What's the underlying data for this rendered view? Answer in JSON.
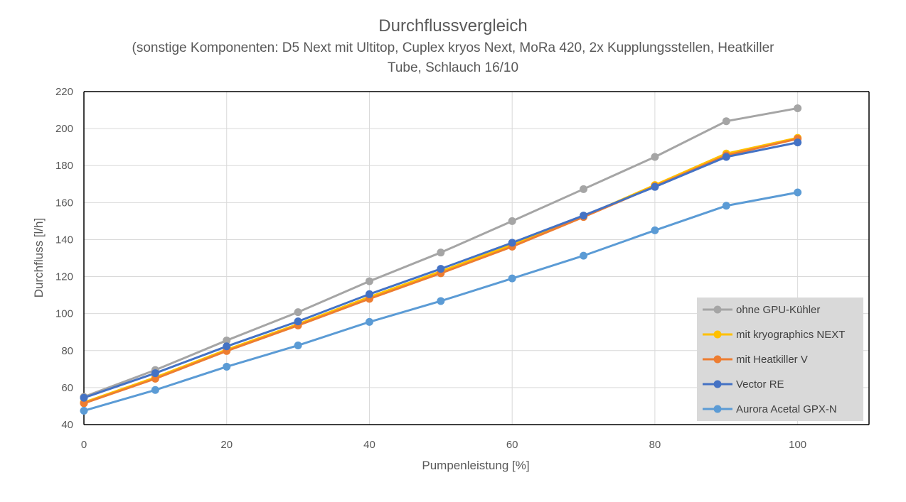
{
  "chart_data": {
    "type": "line",
    "title": "Durchflussvergleich",
    "subtitle_lines": [
      "(sonstige Komponenten:  D5 Next mit Ultitop, Cuplex kryos Next, MoRa 420,  2x Kupplungsstellen, Heatkiller",
      "Tube, Schlauch 16/10"
    ],
    "xlabel": "Pumpenleistung [%]",
    "ylabel": "Durchfluss [l/h]",
    "xlim": [
      0,
      110
    ],
    "ylim": [
      40,
      220
    ],
    "xticks": [
      0,
      20,
      40,
      60,
      80,
      100
    ],
    "yticks": [
      40,
      60,
      80,
      100,
      120,
      140,
      160,
      180,
      200,
      220
    ],
    "grid": true,
    "legend_position": "right",
    "x": [
      0,
      10,
      20,
      30,
      40,
      50,
      60,
      70,
      80,
      90,
      100
    ],
    "series": [
      {
        "name": "ohne GPU-Kühler",
        "color": "#A5A5A5",
        "values": [
          55,
          69.5,
          85.5,
          100.8,
          117.5,
          133,
          150,
          167.3,
          184.7,
          204,
          211
        ]
      },
      {
        "name": "mit kryographics NEXT",
        "color": "#FFC000",
        "values": [
          52,
          65.5,
          80.5,
          94.3,
          109,
          122.8,
          137.2,
          152.5,
          169.5,
          186.5,
          195
        ]
      },
      {
        "name": "mit Heatkiller V",
        "color": "#ED7D31",
        "values": [
          51.5,
          64.8,
          79.8,
          93.6,
          108,
          121.8,
          136.2,
          152.2,
          168.8,
          185.5,
          194.5
        ]
      },
      {
        "name": "Vector RE",
        "color": "#4472C4",
        "values": [
          54.5,
          67.8,
          82.3,
          95.8,
          110.5,
          124.2,
          138.3,
          153,
          168.5,
          184.7,
          192.5
        ]
      },
      {
        "name": "Aurora Acetal GPX-N",
        "color": "#5B9BD5",
        "values": [
          47.5,
          58.7,
          71.3,
          82.8,
          95.5,
          106.8,
          119,
          131.3,
          145,
          158.3,
          165.5
        ]
      }
    ]
  }
}
